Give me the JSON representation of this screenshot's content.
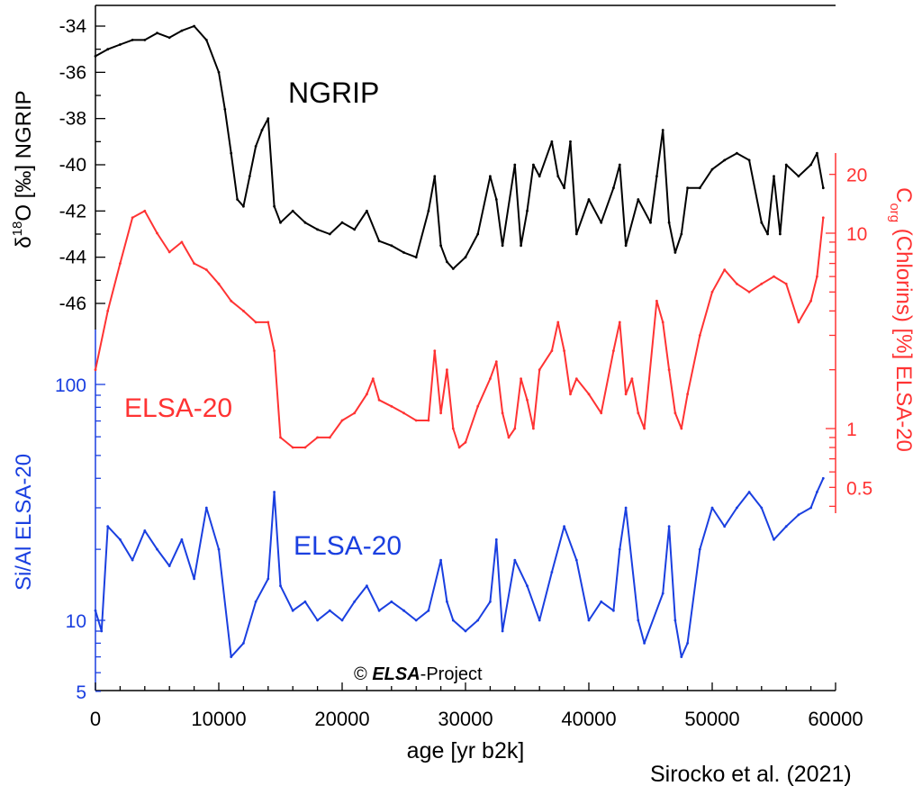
{
  "chart_data": {
    "type": "line",
    "xlabel": "age [yr b2k]",
    "xlim": [
      0,
      60000
    ],
    "x_ticks": [
      "0",
      "10000",
      "20000",
      "30000",
      "40000",
      "50000",
      "60000"
    ],
    "colors": {
      "ngrip": "#000000",
      "chlorins": "#ff3333",
      "sial": "#1a3fe0"
    },
    "axes": {
      "ngrip": {
        "label_main": "δ",
        "label_sup": "18",
        "label_rest": "O [‰] NGRIP",
        "ticks": [
          "-34",
          "-36",
          "-38",
          "-40",
          "-42",
          "-44",
          "-46"
        ],
        "ylim": [
          -34,
          -46
        ]
      },
      "chlorins": {
        "label_c": "C",
        "label_sub": "org",
        "label_rest": " (Chlorins) [%] ELSA-20",
        "ticks": [
          "20",
          "10",
          "1",
          "0.5"
        ],
        "scale": "log"
      },
      "sial": {
        "label": "Si/Al ELSA-20",
        "ticks": [
          "100",
          "10",
          "5"
        ],
        "scale": "log"
      }
    },
    "series": [
      {
        "name": "NGRIP",
        "axis": "ngrip",
        "x": [
          0,
          1000,
          2000,
          3000,
          4000,
          5000,
          6000,
          7000,
          8000,
          9000,
          10000,
          10500,
          11000,
          11500,
          12000,
          12500,
          13000,
          13500,
          14000,
          14500,
          15000,
          16000,
          17000,
          18000,
          19000,
          20000,
          21000,
          22000,
          23000,
          24000,
          25000,
          26000,
          27000,
          27500,
          28000,
          28500,
          29000,
          30000,
          31000,
          32000,
          32500,
          33000,
          34000,
          34500,
          35000,
          35500,
          36000,
          37000,
          37500,
          38000,
          38500,
          39000,
          40000,
          41000,
          42000,
          42500,
          43000,
          44000,
          45000,
          45500,
          46000,
          46500,
          47000,
          47500,
          48000,
          49000,
          50000,
          51000,
          52000,
          53000,
          54000,
          54500,
          55000,
          55500,
          56000,
          57000,
          58000,
          58500,
          59000
        ],
        "y": [
          -35.3,
          -35.0,
          -34.8,
          -34.6,
          -34.6,
          -34.3,
          -34.5,
          -34.2,
          -34.0,
          -34.6,
          -36.0,
          -37.6,
          -39.5,
          -41.5,
          -41.8,
          -40.5,
          -39.2,
          -38.5,
          -38.0,
          -41.8,
          -42.5,
          -42.0,
          -42.5,
          -42.8,
          -43.0,
          -42.5,
          -42.8,
          -42.0,
          -43.3,
          -43.5,
          -43.8,
          -44.0,
          -42.0,
          -40.5,
          -43.5,
          -44.2,
          -44.5,
          -44.0,
          -43.0,
          -40.5,
          -41.5,
          -43.5,
          -40.0,
          -43.5,
          -42.0,
          -40.0,
          -40.5,
          -39.0,
          -40.5,
          -41.0,
          -39.0,
          -43.0,
          -41.5,
          -42.5,
          -41.0,
          -40.0,
          -43.5,
          -41.5,
          -42.5,
          -40.5,
          -38.5,
          -42.5,
          -43.8,
          -43.0,
          -41.0,
          -41.0,
          -40.2,
          -39.8,
          -39.5,
          -39.8,
          -42.5,
          -43.0,
          -40.5,
          -43.0,
          -40.0,
          -40.5,
          -40.0,
          -39.5,
          -41.0
        ]
      },
      {
        "name": "ELSA-20",
        "axis": "chlorins",
        "x": [
          0,
          1000,
          2000,
          3000,
          4000,
          5000,
          6000,
          7000,
          8000,
          9000,
          10000,
          11000,
          12000,
          13000,
          14000,
          14500,
          15000,
          16000,
          17000,
          18000,
          19000,
          20000,
          21000,
          22000,
          22500,
          23000,
          24000,
          25000,
          26000,
          27000,
          27500,
          28000,
          28500,
          29000,
          29500,
          30000,
          31000,
          32000,
          32500,
          33000,
          33500,
          34000,
          34500,
          35000,
          35500,
          36000,
          37000,
          37500,
          38000,
          38500,
          39000,
          40000,
          41000,
          42000,
          42500,
          43000,
          43500,
          44000,
          44500,
          45500,
          46000,
          46500,
          47000,
          47500,
          48000,
          49000,
          50000,
          51000,
          52000,
          53000,
          54000,
          55000,
          56000,
          57000,
          58000,
          58500,
          59000
        ],
        "y": [
          2.0,
          4.0,
          7.0,
          12.0,
          13.0,
          10.0,
          8.0,
          9.0,
          7.0,
          6.5,
          5.5,
          4.5,
          4.0,
          3.5,
          3.5,
          2.5,
          0.9,
          0.8,
          0.8,
          0.9,
          0.9,
          1.1,
          1.2,
          1.5,
          1.8,
          1.4,
          1.3,
          1.2,
          1.1,
          1.1,
          2.5,
          1.2,
          2.0,
          1.0,
          0.8,
          0.85,
          1.3,
          1.8,
          2.2,
          1.2,
          0.9,
          1.0,
          1.8,
          1.4,
          1.0,
          2.0,
          2.5,
          3.5,
          2.5,
          1.5,
          1.8,
          1.5,
          1.2,
          2.5,
          3.5,
          1.5,
          1.8,
          1.2,
          1.0,
          4.5,
          3.5,
          2.0,
          1.2,
          1.0,
          1.5,
          3.0,
          5.0,
          6.5,
          5.5,
          5.0,
          5.5,
          6.0,
          5.5,
          3.5,
          4.5,
          6.0,
          12.0
        ]
      },
      {
        "name": "ELSA-20",
        "axis": "sial",
        "x": [
          0,
          500,
          1000,
          2000,
          3000,
          4000,
          5000,
          6000,
          7000,
          8000,
          9000,
          10000,
          11000,
          12000,
          13000,
          14000,
          14500,
          15000,
          16000,
          17000,
          18000,
          19000,
          20000,
          21000,
          22000,
          23000,
          24000,
          25000,
          26000,
          27000,
          28000,
          28500,
          29000,
          30000,
          31000,
          32000,
          32500,
          33000,
          34000,
          35000,
          36000,
          37000,
          38000,
          39000,
          40000,
          41000,
          42000,
          42500,
          43000,
          44000,
          44500,
          46000,
          46500,
          47000,
          47500,
          48000,
          49000,
          50000,
          51000,
          52000,
          53000,
          54000,
          55000,
          56000,
          57000,
          58000,
          58500,
          59000
        ],
        "y": [
          11,
          9,
          25,
          22,
          18,
          24,
          20,
          17,
          22,
          15,
          30,
          20,
          7,
          8,
          12,
          15,
          35,
          14,
          11,
          12,
          10,
          11,
          10,
          12,
          14,
          11,
          12,
          11,
          10,
          11,
          18,
          12,
          10,
          9,
          10,
          12,
          22,
          9,
          18,
          14,
          10,
          16,
          25,
          18,
          10,
          12,
          11,
          20,
          30,
          10,
          8,
          13,
          25,
          10,
          7,
          8,
          20,
          30,
          25,
          30,
          35,
          30,
          22,
          25,
          28,
          30,
          35,
          40
        ]
      }
    ],
    "annotations": {
      "ngrip_label": "NGRIP",
      "chlorins_label": "ELSA-20",
      "sial_label": "ELSA-20"
    }
  },
  "copyright": {
    "symbol": "©",
    "bold": "ELSA",
    "rest": "-Project"
  },
  "credit": "Sirocko et al. (2021)"
}
